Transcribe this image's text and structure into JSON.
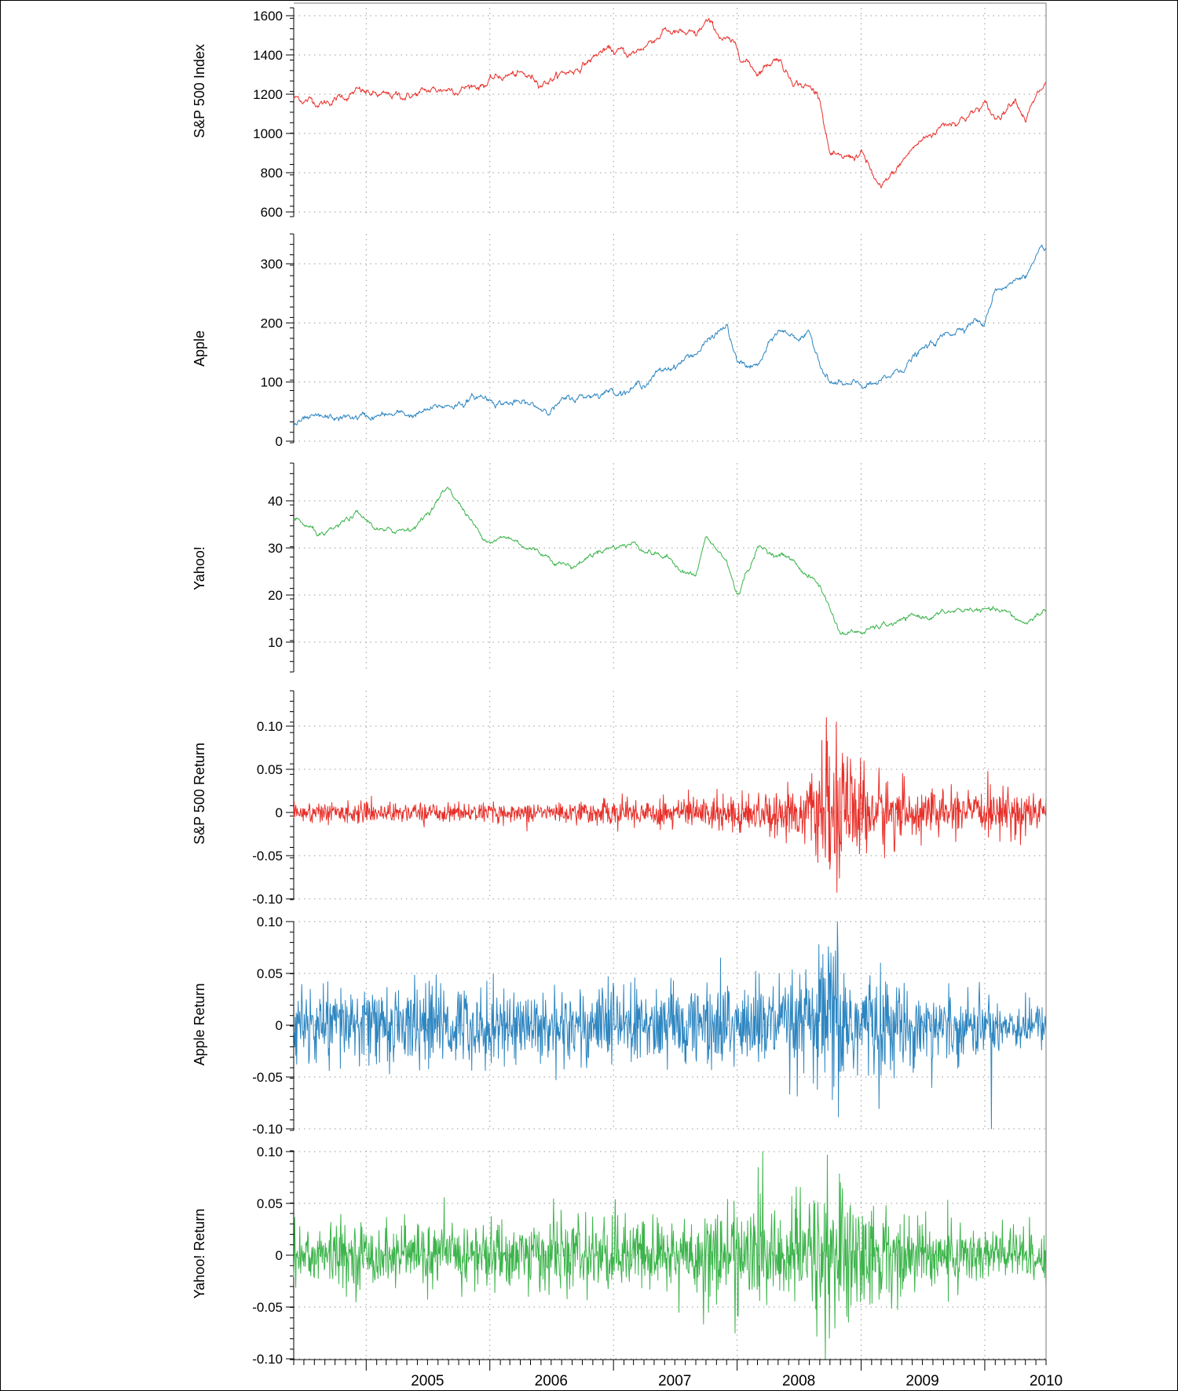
{
  "chart_data": {
    "type": "line",
    "x_range": [
      "2004-06-01",
      "2010-07-01"
    ],
    "x_tick_labels": [
      "2005",
      "2006",
      "2007",
      "2008",
      "2009",
      "2010"
    ],
    "grid": true,
    "panels": [
      {
        "id": "sp500",
        "ylabel": "S&P 500 Index",
        "color": "#e8302a",
        "ylim": [
          600,
          1650
        ],
        "yticks": [
          600,
          800,
          1000,
          1200,
          1400,
          1600
        ],
        "ytick_labels": [
          "600",
          "800",
          "1000",
          "1200",
          "1400",
          "1600"
        ],
        "series": {
          "name": "",
          "x": [
            "2004-06",
            "2004-09",
            "2004-12",
            "2005-03",
            "2005-06",
            "2005-09",
            "2005-12",
            "2006-03",
            "2006-06",
            "2006-09",
            "2006-12",
            "2007-03",
            "2007-06",
            "2007-09",
            "2007-10",
            "2007-12",
            "2008-03",
            "2008-05",
            "2008-06",
            "2008-09",
            "2008-10",
            "2008-11",
            "2009-01",
            "2009-03",
            "2009-06",
            "2009-09",
            "2009-12",
            "2010-01",
            "2010-02",
            "2010-04",
            "2010-05",
            "2010-07"
          ],
          "values": [
            1180,
            1160,
            1210,
            1180,
            1200,
            1230,
            1250,
            1300,
            1270,
            1320,
            1420,
            1400,
            1530,
            1480,
            1560,
            1470,
            1320,
            1400,
            1300,
            1200,
            900,
            850,
            900,
            700,
            920,
            1050,
            1110,
            1140,
            1070,
            1200,
            1090,
            1250
          ]
        }
      },
      {
        "id": "apple",
        "ylabel": "Apple",
        "color": "#2e86c1",
        "ylim": [
          0,
          350
        ],
        "yticks": [
          0,
          100,
          200,
          300
        ],
        "ytick_labels": [
          "0",
          "100",
          "200",
          "300"
        ],
        "series": {
          "name": "",
          "x": [
            "2004-06",
            "2004-12",
            "2005-06",
            "2005-12",
            "2006-03",
            "2006-06",
            "2006-09",
            "2006-12",
            "2007-03",
            "2007-06",
            "2007-09",
            "2007-12",
            "2008-01",
            "2008-03",
            "2008-05",
            "2008-08",
            "2008-10",
            "2008-12",
            "2009-03",
            "2009-06",
            "2009-09",
            "2009-12",
            "2010-01",
            "2010-02",
            "2010-04",
            "2010-07"
          ],
          "values": [
            30,
            40,
            45,
            75,
            65,
            55,
            70,
            85,
            90,
            120,
            150,
            195,
            130,
            125,
            185,
            175,
            100,
            90,
            95,
            140,
            175,
            210,
            195,
            260,
            270,
            320
          ]
        }
      },
      {
        "id": "yahoo",
        "ylabel": "Yahoo!",
        "color": "#3cb44b",
        "ylim": [
          5,
          48
        ],
        "yticks": [
          10,
          20,
          30,
          40
        ],
        "ytick_labels": [
          "10",
          "20",
          "30",
          "40"
        ],
        "series": {
          "name": "",
          "x": [
            "2004-06",
            "2004-09",
            "2004-12",
            "2005-03",
            "2005-06",
            "2005-09",
            "2005-12",
            "2006-01",
            "2006-03",
            "2006-06",
            "2006-09",
            "2006-12",
            "2007-03",
            "2007-06",
            "2007-09",
            "2007-10",
            "2007-12",
            "2008-01",
            "2008-03",
            "2008-06",
            "2008-09",
            "2008-11",
            "2009-01",
            "2009-06",
            "2009-12",
            "2010-03",
            "2010-05",
            "2010-07"
          ],
          "values": [
            36,
            32,
            37,
            33,
            35,
            43,
            33,
            32,
            32,
            29,
            26,
            30,
            31,
            28,
            24,
            32,
            27,
            20,
            30,
            28,
            22,
            12,
            12,
            15,
            17,
            16,
            14,
            17
          ]
        }
      },
      {
        "id": "sp500_return",
        "ylabel": "S&P 500 Return",
        "color": "#e8302a",
        "ylim": [
          -0.1,
          0.14
        ],
        "yticks": [
          -0.1,
          -0.05,
          0,
          0.05,
          0.1
        ],
        "ytick_labels": [
          "-0.10",
          "-0.05",
          "0",
          "0.05",
          "0.10"
        ],
        "series": {
          "name": "",
          "x": [
            "2004-06",
            "2005-06",
            "2006-06",
            "2007-01",
            "2007-06",
            "2008-01",
            "2008-06",
            "2008-09",
            "2008-10",
            "2008-11",
            "2008-12",
            "2009-03",
            "2009-06",
            "2009-12",
            "2010-05",
            "2010-07"
          ],
          "amplitude": [
            0.012,
            0.011,
            0.01,
            0.015,
            0.018,
            0.022,
            0.026,
            0.045,
            0.095,
            0.085,
            0.06,
            0.045,
            0.028,
            0.02,
            0.03,
            0.018
          ]
        }
      },
      {
        "id": "apple_return",
        "ylabel": "Apple Return",
        "color": "#2e86c1",
        "ylim": [
          -0.1,
          0.1
        ],
        "yticks": [
          -0.1,
          -0.05,
          0,
          0.05,
          0.1
        ],
        "ytick_labels": [
          "-0.10",
          "-0.05",
          "0",
          "0.05",
          "0.10"
        ],
        "series": {
          "name": "",
          "x": [
            "2004-06",
            "2005-06",
            "2006-06",
            "2007-01",
            "2007-06",
            "2008-01",
            "2008-06",
            "2008-09",
            "2008-10",
            "2008-12",
            "2009-06",
            "2009-12",
            "2010-07"
          ],
          "amplitude": [
            0.035,
            0.04,
            0.035,
            0.04,
            0.035,
            0.045,
            0.04,
            0.06,
            0.1,
            0.06,
            0.035,
            0.03,
            0.02
          ]
        }
      },
      {
        "id": "yahoo_return",
        "ylabel": "Yahoo! Return",
        "color": "#3cb44b",
        "ylim": [
          -0.1,
          0.1
        ],
        "yticks": [
          -0.1,
          -0.05,
          0,
          0.05,
          0.1
        ],
        "ytick_labels": [
          "-0.10",
          "-0.05",
          "0",
          "0.05",
          "0.10"
        ],
        "series": {
          "name": "",
          "x": [
            "2004-06",
            "2005-06",
            "2006-06",
            "2007-01",
            "2007-06",
            "2008-01",
            "2008-06",
            "2008-09",
            "2008-10",
            "2008-12",
            "2009-06",
            "2009-12",
            "2010-07"
          ],
          "amplitude": [
            0.03,
            0.03,
            0.035,
            0.035,
            0.035,
            0.05,
            0.045,
            0.07,
            0.1,
            0.06,
            0.035,
            0.03,
            0.03
          ]
        }
      }
    ]
  }
}
